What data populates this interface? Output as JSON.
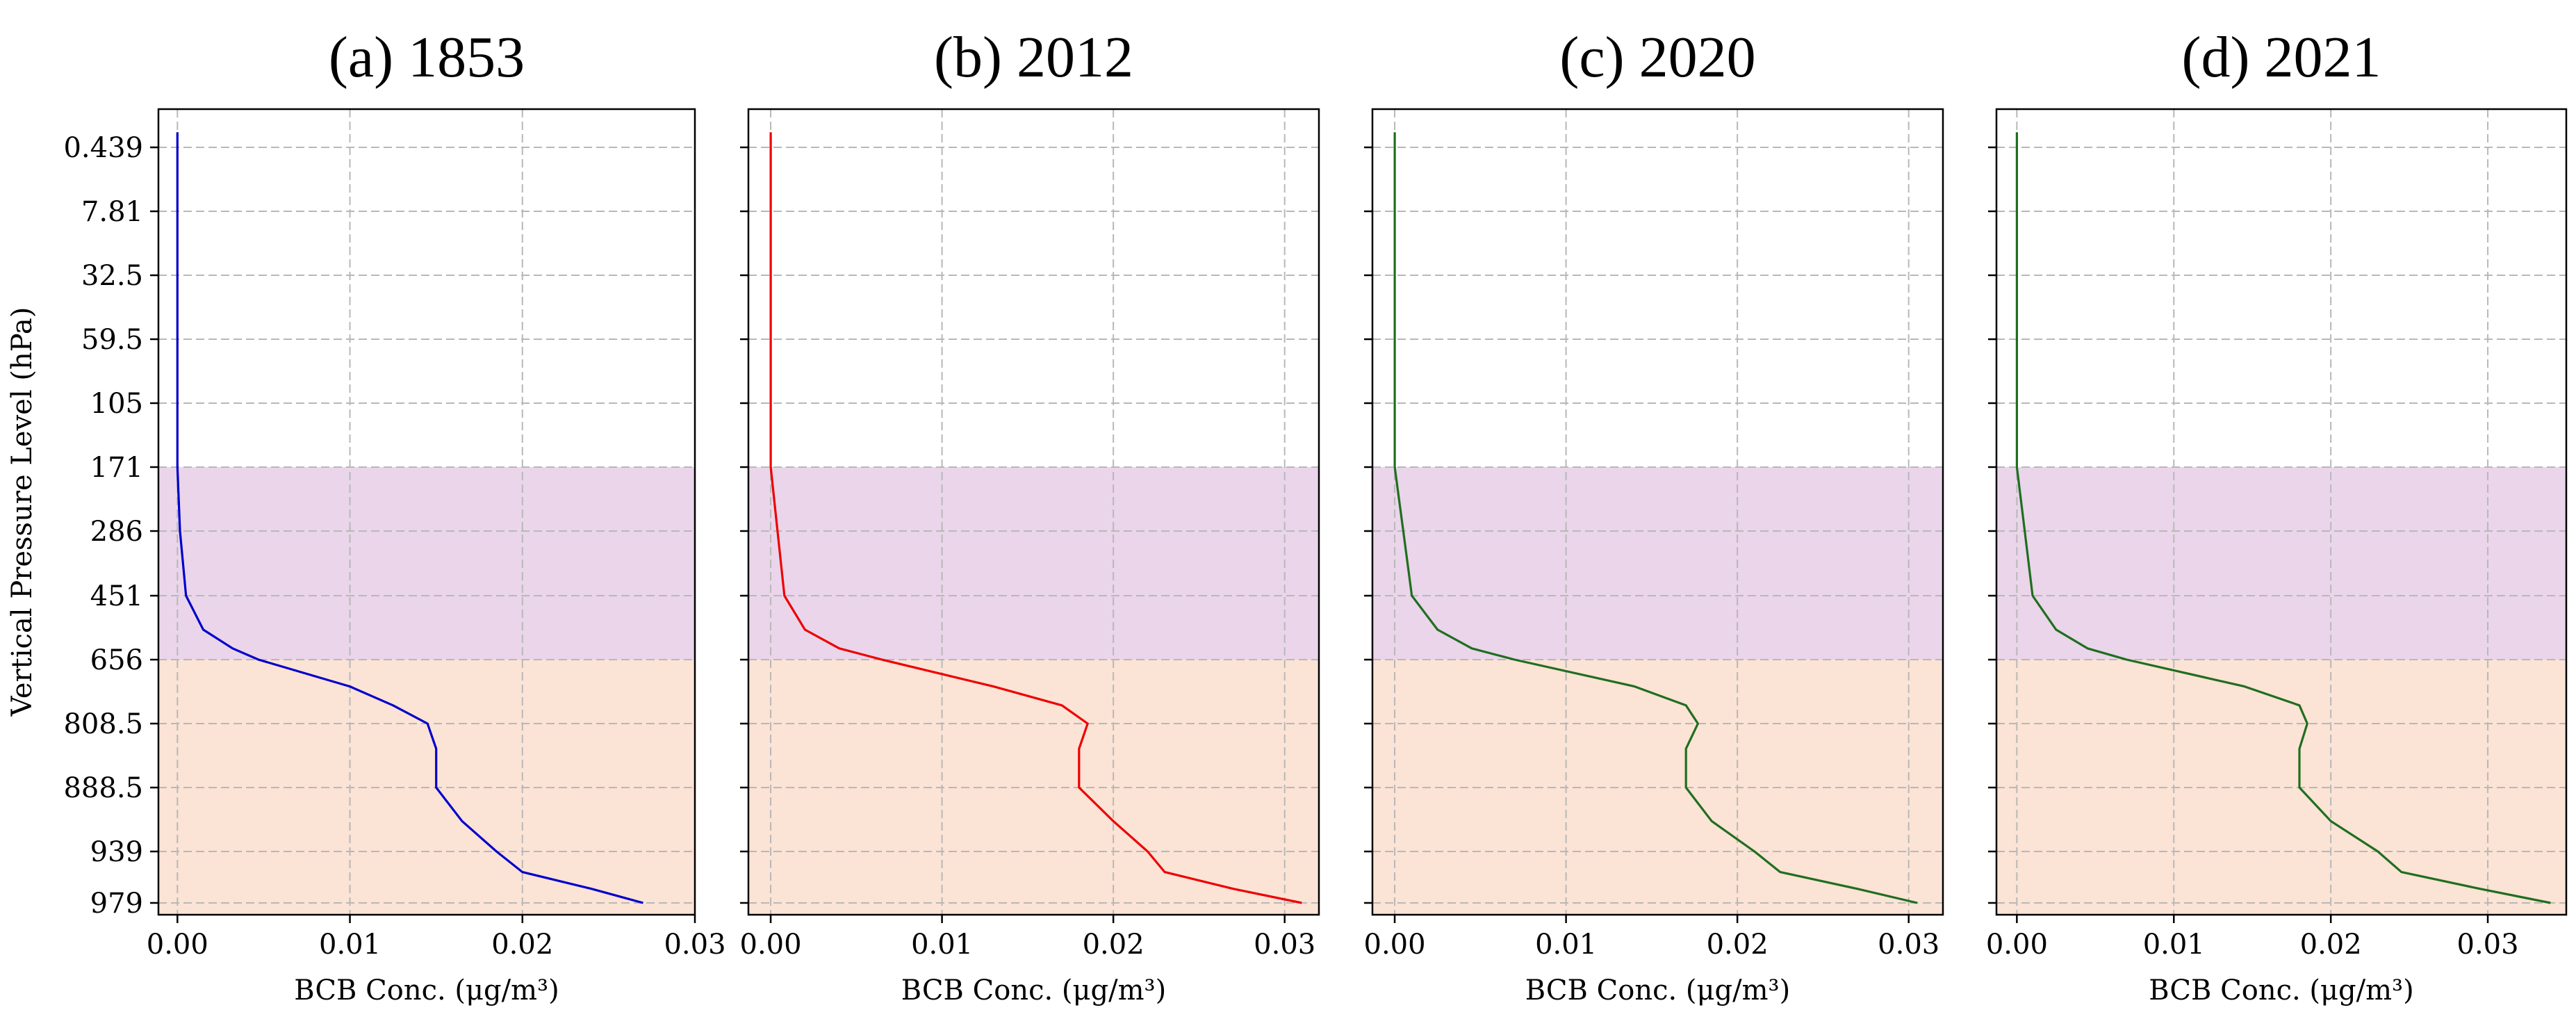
{
  "figure": {
    "ylabel": "Vertical Pressure Level (hPa)",
    "shared_y_ticks": [
      "0.439",
      "7.81",
      "32.5",
      "59.5",
      "105",
      "171",
      "286",
      "451",
      "656",
      "808.5",
      "888.5",
      "939",
      "979"
    ],
    "band_colors": {
      "upper": "#ead5ea",
      "lower": "#fbe3d5"
    }
  },
  "chart_data": [
    {
      "type": "line",
      "title": "(a) 1853",
      "xlabel": "BCB Conc. (μg/m³)",
      "ylabel": "Vertical Pressure Level (hPa)",
      "x_ticks": [
        "0.00",
        "0.01",
        "0.02",
        "0.03"
      ],
      "xlim": [
        -0.0011,
        0.03
      ],
      "y_categories": [
        "0.439",
        "7.81",
        "32.5",
        "59.5",
        "105",
        "171",
        "286",
        "451",
        "656",
        "808.5",
        "888.5",
        "939",
        "979"
      ],
      "shaded_bands": [
        {
          "from": "171",
          "to": "656",
          "color": "#ead5ea"
        },
        {
          "from": "656",
          "to": "979",
          "color": "#fbe3d5"
        }
      ],
      "grid": true,
      "series": [
        {
          "color": "#0000cc",
          "points": [
            [
              0,
              0.2
            ],
            [
              0,
              0.439
            ],
            [
              0,
              7.81
            ],
            [
              0,
              32.5
            ],
            [
              0,
              59.5
            ],
            [
              0,
              105
            ],
            [
              0,
              171
            ],
            [
              0.00015,
              286
            ],
            [
              0.0005,
              451
            ],
            [
              0.0015,
              560
            ],
            [
              0.0032,
              620
            ],
            [
              0.0047,
              656
            ],
            [
              0.01,
              720
            ],
            [
              0.0125,
              765
            ],
            [
              0.0145,
              808.5
            ],
            [
              0.015,
              840
            ],
            [
              0.015,
              888.5
            ],
            [
              0.0165,
              915
            ],
            [
              0.0185,
              939
            ],
            [
              0.02,
              955
            ],
            [
              0.024,
              968
            ],
            [
              0.027,
              979
            ]
          ]
        }
      ]
    },
    {
      "type": "line",
      "title": "(b) 2012",
      "xlabel": "BCB Conc. (μg/m³)",
      "ylabel": "Vertical Pressure Level (hPa)",
      "x_ticks": [
        "0.00",
        "0.01",
        "0.02",
        "0.03"
      ],
      "xlim": [
        -0.0013,
        0.032
      ],
      "y_categories": [
        "0.439",
        "7.81",
        "32.5",
        "59.5",
        "105",
        "171",
        "286",
        "451",
        "656",
        "808.5",
        "888.5",
        "939",
        "979"
      ],
      "shaded_bands": [
        {
          "from": "171",
          "to": "656",
          "color": "#ead5ea"
        },
        {
          "from": "656",
          "to": "979",
          "color": "#fbe3d5"
        }
      ],
      "grid": true,
      "series": [
        {
          "color": "#ee0000",
          "points": [
            [
              0,
              0.2
            ],
            [
              0,
              0.439
            ],
            [
              0,
              7.81
            ],
            [
              0,
              32.5
            ],
            [
              0,
              59.5
            ],
            [
              0,
              105
            ],
            [
              0,
              171
            ],
            [
              0.0004,
              286
            ],
            [
              0.0008,
              451
            ],
            [
              0.002,
              560
            ],
            [
              0.004,
              620
            ],
            [
              0.0065,
              656
            ],
            [
              0.013,
              720
            ],
            [
              0.017,
              765
            ],
            [
              0.0185,
              808.5
            ],
            [
              0.018,
              840
            ],
            [
              0.018,
              888.5
            ],
            [
              0.02,
              915
            ],
            [
              0.022,
              939
            ],
            [
              0.023,
              955
            ],
            [
              0.027,
              968
            ],
            [
              0.031,
              979
            ]
          ]
        }
      ]
    },
    {
      "type": "line",
      "title": "(c) 2020",
      "xlabel": "BCB Conc. (μg/m³)",
      "ylabel": "Vertical Pressure Level (hPa)",
      "x_ticks": [
        "0.00",
        "0.01",
        "0.02",
        "0.03"
      ],
      "xlim": [
        -0.0013,
        0.032
      ],
      "y_categories": [
        "0.439",
        "7.81",
        "32.5",
        "59.5",
        "105",
        "171",
        "286",
        "451",
        "656",
        "808.5",
        "888.5",
        "939",
        "979"
      ],
      "shaded_bands": [
        {
          "from": "171",
          "to": "656",
          "color": "#ead5ea"
        },
        {
          "from": "656",
          "to": "979",
          "color": "#fbe3d5"
        }
      ],
      "grid": true,
      "series": [
        {
          "color": "#1f6e1f",
          "points": [
            [
              0,
              0.2
            ],
            [
              0,
              0.439
            ],
            [
              0,
              7.81
            ],
            [
              0,
              32.5
            ],
            [
              0,
              59.5
            ],
            [
              0,
              105
            ],
            [
              0,
              171
            ],
            [
              0.0005,
              286
            ],
            [
              0.001,
              451
            ],
            [
              0.0025,
              560
            ],
            [
              0.0045,
              620
            ],
            [
              0.007,
              656
            ],
            [
              0.014,
              720
            ],
            [
              0.017,
              765
            ],
            [
              0.0177,
              808.5
            ],
            [
              0.017,
              840
            ],
            [
              0.017,
              888.5
            ],
            [
              0.0185,
              915
            ],
            [
              0.021,
              939
            ],
            [
              0.0225,
              955
            ],
            [
              0.027,
              968
            ],
            [
              0.0305,
              979
            ]
          ]
        }
      ]
    },
    {
      "type": "line",
      "title": "(d) 2021",
      "xlabel": "BCB Conc. (μg/m³)",
      "ylabel": "Vertical Pressure Level (hPa)",
      "x_ticks": [
        "0.00",
        "0.01",
        "0.02",
        "0.03"
      ],
      "xlim": [
        -0.0013,
        0.035
      ],
      "y_categories": [
        "0.439",
        "7.81",
        "32.5",
        "59.5",
        "105",
        "171",
        "286",
        "451",
        "656",
        "808.5",
        "888.5",
        "939",
        "979"
      ],
      "shaded_bands": [
        {
          "from": "171",
          "to": "656",
          "color": "#ead5ea"
        },
        {
          "from": "656",
          "to": "979",
          "color": "#fbe3d5"
        }
      ],
      "grid": true,
      "series": [
        {
          "color": "#1f6e1f",
          "points": [
            [
              0,
              0.2
            ],
            [
              0,
              0.439
            ],
            [
              0,
              7.81
            ],
            [
              0,
              32.5
            ],
            [
              0,
              59.5
            ],
            [
              0,
              105
            ],
            [
              0,
              171
            ],
            [
              0.0005,
              286
            ],
            [
              0.001,
              451
            ],
            [
              0.0025,
              560
            ],
            [
              0.0045,
              620
            ],
            [
              0.007,
              656
            ],
            [
              0.0145,
              720
            ],
            [
              0.018,
              765
            ],
            [
              0.0185,
              808.5
            ],
            [
              0.018,
              840
            ],
            [
              0.018,
              888.5
            ],
            [
              0.02,
              915
            ],
            [
              0.023,
              939
            ],
            [
              0.0245,
              955
            ],
            [
              0.0295,
              968
            ],
            [
              0.034,
              979
            ]
          ]
        }
      ]
    }
  ]
}
